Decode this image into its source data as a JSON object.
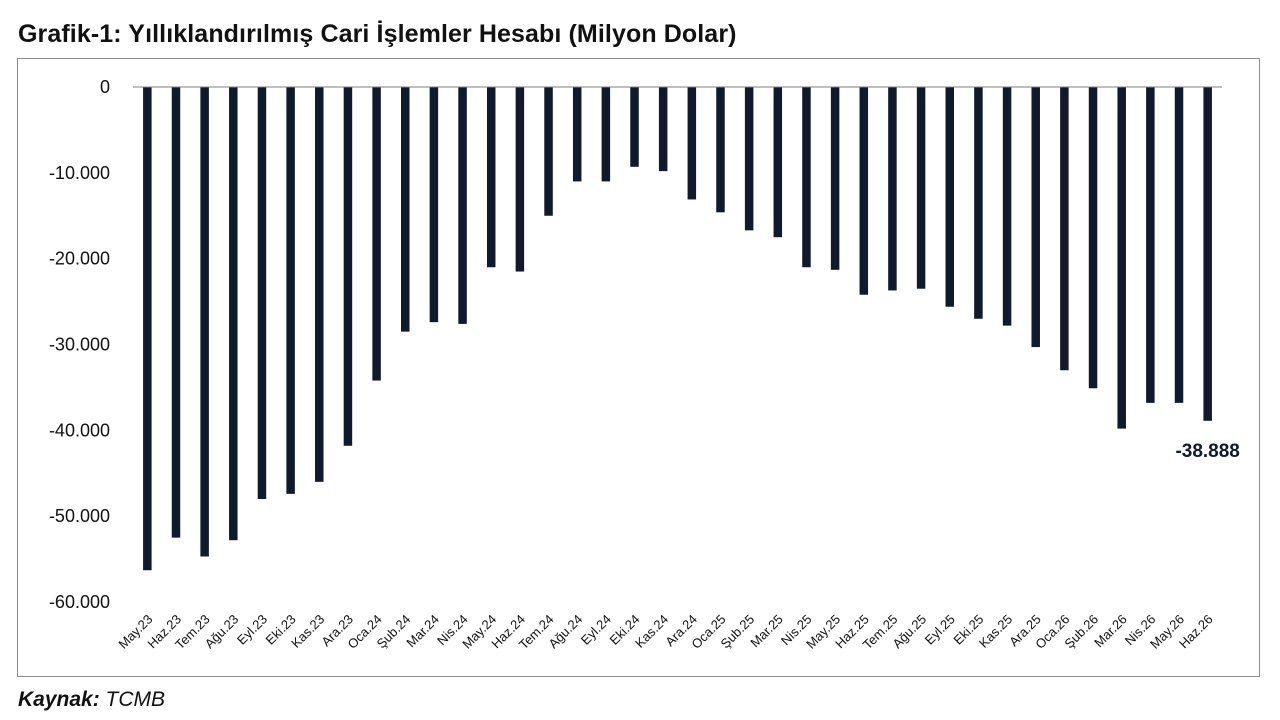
{
  "title": "Grafik-1: Yıllıklandırılmış Cari İşlemler Hesabı (Milyon Dolar)",
  "source": {
    "label": "Kaynak:",
    "value": "TCMB"
  },
  "colors": {
    "bar": "#0f1b2d",
    "axis": "#7f7f7f",
    "frame": "#8c8c8c"
  },
  "chart_data": {
    "type": "bar",
    "title": "Grafik-1: Yıllıklandırılmış Cari İşlemler Hesabı (Milyon Dolar)",
    "xlabel": "",
    "ylabel": "",
    "ylim": [
      -60000,
      0
    ],
    "yticks": [
      0,
      -10000,
      -20000,
      -30000,
      -40000,
      -50000,
      -60000
    ],
    "ytick_labels": [
      "0",
      "-10.000",
      "-20.000",
      "-30.000",
      "-40.000",
      "-50.000",
      "-60.000"
    ],
    "grid": false,
    "categories": [
      "May.23",
      "Haz.23",
      "Tem.23",
      "Ağu.23",
      "Eyl.23",
      "Eki.23",
      "Kas.23",
      "Ara.23",
      "Oca.24",
      "Şub.24",
      "Mar.24",
      "Nis.24",
      "May.24",
      "Haz.24",
      "Tem.24",
      "Ağu.24",
      "Eyl.24",
      "Eki.24",
      "Kas.24",
      "Ara.24",
      "Oca.25",
      "Şub.25",
      "Mar.25",
      "Nis.25",
      "May.25",
      "Haz.25",
      "Tem.25",
      "Ağu.25",
      "Eyl.25",
      "Eki.25",
      "Kas.25",
      "Ara.25",
      "Oca.26",
      "Şub.26",
      "Mar.26",
      "Nis.26",
      "May.26",
      "Haz.26"
    ],
    "values": [
      -56300,
      -52500,
      -54700,
      -52800,
      -48000,
      -47400,
      -46000,
      -41800,
      -34200,
      -28500,
      -27400,
      -27600,
      -21000,
      -21500,
      -15000,
      -11000,
      -11000,
      -9300,
      -9800,
      -13100,
      -14600,
      -16700,
      -17500,
      -21000,
      -21300,
      -24200,
      -23700,
      -23500,
      -25600,
      -27000,
      -27800,
      -30300,
      -33000,
      -35100,
      -39800,
      -36800,
      -36800,
      -38888
    ],
    "annotations": [
      {
        "category": "Haz.26",
        "text": "-38.888"
      }
    ]
  }
}
